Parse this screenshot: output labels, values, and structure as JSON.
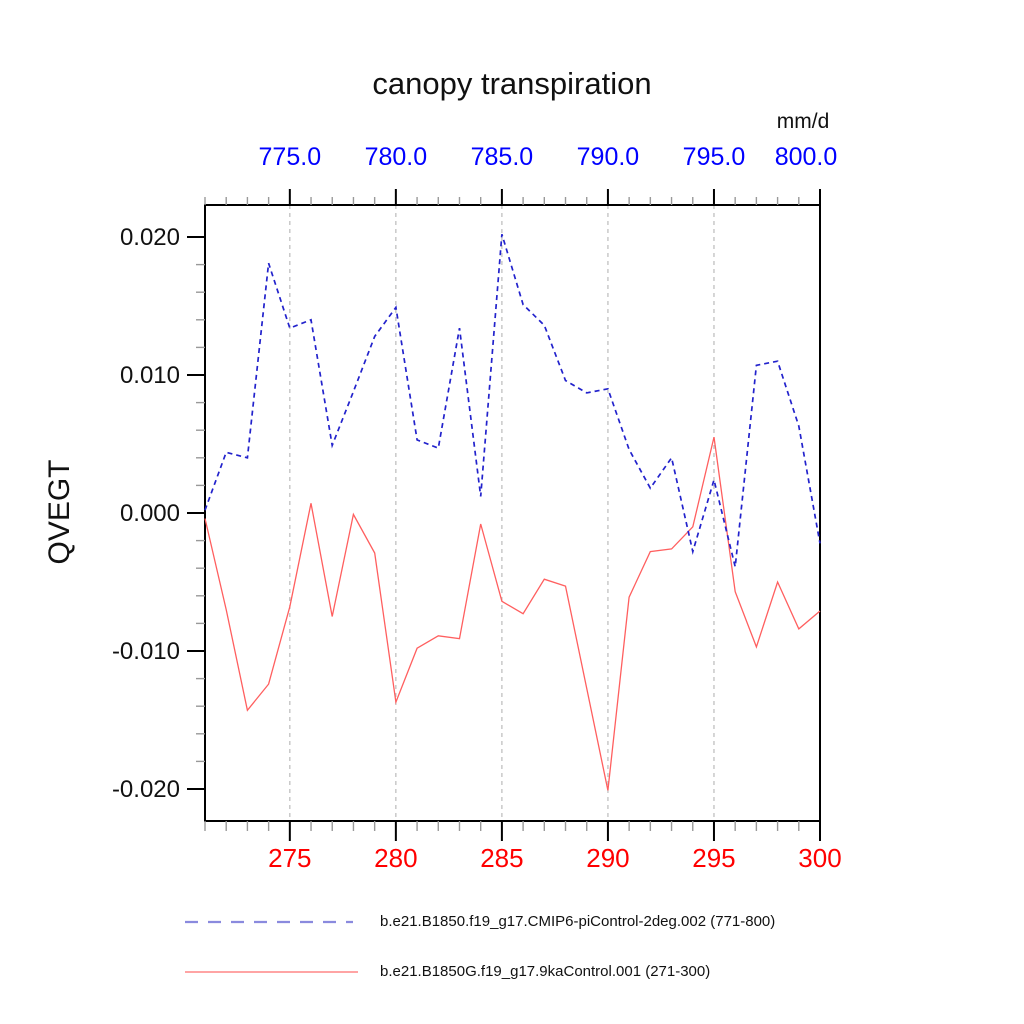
{
  "title": "canopy transpiration",
  "unit_label": "mm/d",
  "y_axis_label": "QVEGT",
  "colors": {
    "blue_series": "#2222cc",
    "red_series": "#ff5f5f",
    "legend_blue": "#8a8ade",
    "legend_red": "#ff8585",
    "top_axis_labels": "#0000ff",
    "bottom_axis_labels": "#ff0000",
    "y_axis_labels": "#111111",
    "grid": "#bbbbbb",
    "minor_tick": "#999999",
    "major_tick": "#000000"
  },
  "legend": [
    {
      "label": "b.e21.B1850.f19_g17.CMIP6-piControl-2deg.002 (771-800)",
      "style": "dashed"
    },
    {
      "label": "b.e21.B1850G.f19_g17.9kaControl.001 (271-300)",
      "style": "solid"
    }
  ],
  "chart_data": {
    "type": "line",
    "title": "canopy transpiration",
    "ylabel": "QVEGT",
    "top_axis_unit": "mm/d",
    "ylim": [
      -0.0223,
      0.0223
    ],
    "y_major_ticks": [
      0.02,
      0.01,
      0.0,
      -0.01,
      -0.02
    ],
    "y_tick_labels": [
      "0.020",
      "0.010",
      "0.000",
      "-0.010",
      "-0.020"
    ],
    "y_minor_step": 0.002,
    "x_range_bottom": [
      271,
      300
    ],
    "x_range_top": [
      771,
      800
    ],
    "bottom_major_tick_years": [
      275,
      280,
      285,
      290,
      295,
      300
    ],
    "bottom_tick_labels": [
      "275",
      "280",
      "285",
      "290",
      "295",
      "300"
    ],
    "top_tick_labels": [
      "775.0",
      "780.0",
      "785.0",
      "790.0",
      "795.0",
      "800.0"
    ],
    "gridline_years": [
      275,
      280,
      285,
      290,
      295
    ],
    "grid": true,
    "legend_position": "bottom",
    "x": [
      271,
      272,
      273,
      274,
      275,
      276,
      277,
      278,
      279,
      280,
      281,
      282,
      283,
      284,
      285,
      286,
      287,
      288,
      289,
      290,
      291,
      292,
      293,
      294,
      295,
      296,
      297,
      298,
      299,
      300
    ],
    "series": [
      {
        "name": "b.e21.B1850.f19_g17.CMIP6-piControl-2deg.002 (771-800)",
        "style": "dashed",
        "x_top": [
          771,
          772,
          773,
          774,
          775,
          776,
          777,
          778,
          779,
          780,
          781,
          782,
          783,
          784,
          785,
          786,
          787,
          788,
          789,
          790,
          791,
          792,
          793,
          794,
          795,
          796,
          797,
          798,
          799,
          800
        ],
        "values": [
          0.0002,
          0.0044,
          0.004,
          0.0181,
          0.0134,
          0.014,
          0.0049,
          0.0088,
          0.0128,
          0.0149,
          0.0053,
          0.0047,
          0.0134,
          0.0012,
          0.0202,
          0.0151,
          0.0136,
          0.0096,
          0.0087,
          0.009,
          0.0046,
          0.0018,
          0.004,
          -0.0028,
          0.0024,
          -0.0039,
          0.0107,
          0.011,
          0.0063,
          -0.0022
        ]
      },
      {
        "name": "b.e21.B1850G.f19_g17.9kaControl.001 (271-300)",
        "style": "solid",
        "values": [
          -0.0004,
          -0.007,
          -0.0143,
          -0.0124,
          -0.0068,
          0.0007,
          -0.0075,
          -0.0001,
          -0.0029,
          -0.0137,
          -0.0098,
          -0.0089,
          -0.0091,
          -0.0008,
          -0.0064,
          -0.0073,
          -0.0048,
          -0.0053,
          -0.0127,
          -0.0201,
          -0.0061,
          -0.0028,
          -0.0026,
          -0.001,
          0.0055,
          -0.0057,
          -0.0097,
          -0.005,
          -0.0084,
          -0.0071
        ]
      }
    ]
  }
}
